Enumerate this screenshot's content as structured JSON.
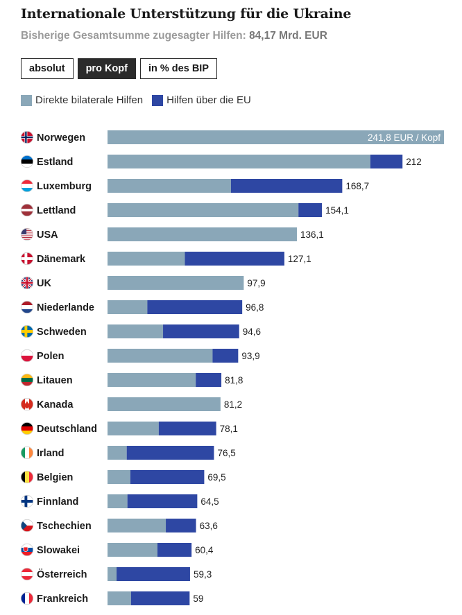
{
  "header": {
    "title": "Internationale Unterstützung für die Ukraine",
    "subtitle_label": "Bisherige Gesamtsumme zugesagter Hilfen:",
    "subtitle_value": "84,17 Mrd. EUR"
  },
  "toggles": [
    {
      "label": "absolut",
      "active": false
    },
    {
      "label": "pro Kopf",
      "active": true
    },
    {
      "label": "in % des BIP",
      "active": false
    }
  ],
  "legend": [
    {
      "label": "Direkte bilaterale Hilfen",
      "color": "#8aa7b8"
    },
    {
      "label": "Hilfen über die EU",
      "color": "#2e47a3"
    }
  ],
  "chart_data": {
    "type": "bar",
    "orientation": "horizontal",
    "stacked": true,
    "unit": "EUR / Kopf",
    "first_label_suffix": " EUR / Kopf",
    "xlim": [
      0,
      241.8
    ],
    "categories": [
      "Norwegen",
      "Estland",
      "Luxemburg",
      "Lettland",
      "USA",
      "Dänemark",
      "UK",
      "Niederlande",
      "Schweden",
      "Polen",
      "Litauen",
      "Kanada",
      "Deutschland",
      "Irland",
      "Belgien",
      "Finnland",
      "Tschechien",
      "Slowakei",
      "Österreich",
      "Frankreich"
    ],
    "flags": [
      "norway-flag-icon",
      "estonia-flag-icon",
      "luxembourg-flag-icon",
      "latvia-flag-icon",
      "usa-flag-icon",
      "denmark-flag-icon",
      "uk-flag-icon",
      "netherlands-flag-icon",
      "sweden-flag-icon",
      "poland-flag-icon",
      "lithuania-flag-icon",
      "canada-flag-icon",
      "germany-flag-icon",
      "ireland-flag-icon",
      "belgium-flag-icon",
      "finland-flag-icon",
      "czechia-flag-icon",
      "slovakia-flag-icon",
      "austria-flag-icon",
      "france-flag-icon"
    ],
    "series": [
      {
        "name": "Direkte bilaterale Hilfen",
        "color": "#8aa7b8",
        "values": [
          241.8,
          188.9,
          88.7,
          137.2,
          136.1,
          55.6,
          97.9,
          28.6,
          39.9,
          75.5,
          63.4,
          81.2,
          36.8,
          13.8,
          16.4,
          14.3,
          41.9,
          35.9,
          6.5,
          16.9
        ]
      },
      {
        "name": "Hilfen über die EU",
        "color": "#2e47a3",
        "values": [
          0,
          23.1,
          80.0,
          16.9,
          0,
          71.5,
          0,
          68.2,
          54.7,
          18.4,
          18.4,
          0,
          41.3,
          62.7,
          53.1,
          50.2,
          21.7,
          24.5,
          52.8,
          42.1
        ]
      }
    ],
    "total_labels": [
      "241,8",
      "212",
      "168,7",
      "154,1",
      "136,1",
      "127,1",
      "97,9",
      "96,8",
      "94,6",
      "93,9",
      "81,8",
      "81,2",
      "78,1",
      "76,5",
      "69,5",
      "64,5",
      "63,6",
      "60,4",
      "59,3",
      "59"
    ]
  }
}
